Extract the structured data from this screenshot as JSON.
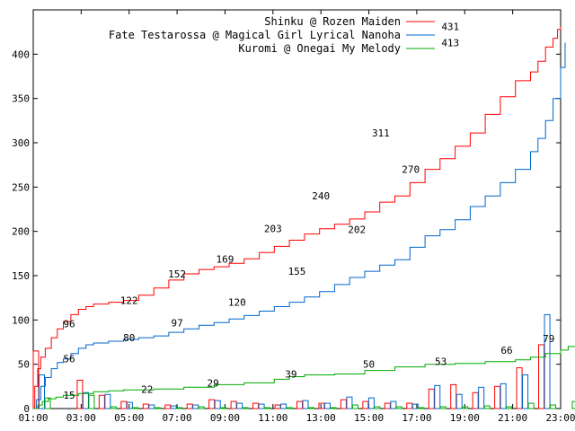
{
  "chart_data": {
    "type": "line",
    "title": "",
    "xlabel": "",
    "ylabel": "",
    "ylim": [
      0,
      450
    ],
    "x_ticks": [
      "01:00",
      "03:00",
      "05:00",
      "07:00",
      "09:00",
      "11:00",
      "13:00",
      "15:00",
      "17:00",
      "19:00",
      "21:00",
      "23:00"
    ],
    "y_ticks": [
      0,
      50,
      100,
      150,
      200,
      250,
      300,
      350,
      400
    ],
    "grid": false,
    "legend_position": "top-right",
    "series": [
      {
        "name": "Shinku @ Rozen Maiden",
        "color": "#ff0000",
        "cumulative": [
          [
            0,
            0
          ],
          [
            0.1,
            25
          ],
          [
            0.3,
            45
          ],
          [
            0.5,
            58
          ],
          [
            0.8,
            68
          ],
          [
            1.2,
            80
          ],
          [
            1.6,
            90
          ],
          [
            2.0,
            98
          ],
          [
            2.5,
            106
          ],
          [
            3.0,
            112
          ],
          [
            3.5,
            115
          ],
          [
            4.0,
            118
          ],
          [
            5.0,
            120
          ],
          [
            6.0,
            122
          ],
          [
            7.0,
            128
          ],
          [
            8.0,
            136
          ],
          [
            9.0,
            145
          ],
          [
            10.0,
            152
          ],
          [
            11.0,
            157
          ],
          [
            12.0,
            160
          ],
          [
            13.0,
            164
          ],
          [
            14.0,
            169
          ],
          [
            15.0,
            176
          ],
          [
            16.0,
            183
          ],
          [
            17.0,
            190
          ],
          [
            18.0,
            197
          ],
          [
            19.0,
            203
          ],
          [
            20.0,
            208
          ],
          [
            21.0,
            214
          ],
          [
            22.0,
            222
          ],
          [
            23.0,
            233
          ],
          [
            24.0,
            240
          ],
          [
            25.0,
            255
          ],
          [
            26.0,
            270
          ],
          [
            27.0,
            282
          ],
          [
            28.0,
            296
          ],
          [
            29.0,
            311
          ],
          [
            30.0,
            332
          ],
          [
            31.0,
            352
          ],
          [
            32.0,
            370
          ],
          [
            33.0,
            380
          ],
          [
            33.5,
            392
          ],
          [
            34.0,
            408
          ],
          [
            34.5,
            418
          ],
          [
            34.8,
            428
          ],
          [
            35.0,
            431
          ]
        ],
        "hourly": [
          65,
          0,
          32,
          15,
          8,
          5,
          4,
          5,
          10,
          8,
          6,
          4,
          8,
          6,
          10,
          8,
          6,
          6,
          22,
          27,
          18,
          25,
          46,
          72,
          0
        ],
        "labels": [
          {
            "x": 3,
            "y": 96,
            "t": "96"
          },
          {
            "x": 8,
            "y": 122,
            "t": "122"
          },
          {
            "x": 12,
            "y": 152,
            "t": "152"
          },
          {
            "x": 16,
            "y": 169,
            "t": "169"
          },
          {
            "x": 20,
            "y": 203,
            "t": "203"
          },
          {
            "x": 24,
            "y": 240,
            "t": "240"
          },
          {
            "x": 29,
            "y": 311,
            "t": "311"
          },
          {
            "x": 34.8,
            "y": 431,
            "t": "431"
          }
        ]
      },
      {
        "name": "Fate Testarossa @ Magical Girl Lyrical Nanoha",
        "color": "#0066cc",
        "cumulative": [
          [
            0,
            0
          ],
          [
            0.2,
            10
          ],
          [
            0.5,
            25
          ],
          [
            0.8,
            35
          ],
          [
            1.2,
            45
          ],
          [
            1.6,
            52
          ],
          [
            2.0,
            56
          ],
          [
            2.5,
            62
          ],
          [
            3.0,
            68
          ],
          [
            3.5,
            72
          ],
          [
            4.0,
            74
          ],
          [
            5.0,
            76
          ],
          [
            6.0,
            78
          ],
          [
            7.0,
            80
          ],
          [
            8.0,
            82
          ],
          [
            9.0,
            86
          ],
          [
            10.0,
            90
          ],
          [
            11.0,
            94
          ],
          [
            12.0,
            97
          ],
          [
            13.0,
            101
          ],
          [
            14.0,
            105
          ],
          [
            15.0,
            110
          ],
          [
            16.0,
            115
          ],
          [
            17.0,
            120
          ],
          [
            18.0,
            126
          ],
          [
            19.0,
            132
          ],
          [
            20.0,
            140
          ],
          [
            21.0,
            148
          ],
          [
            22.0,
            155
          ],
          [
            23.0,
            162
          ],
          [
            24.0,
            168
          ],
          [
            25.0,
            182
          ],
          [
            26.0,
            195
          ],
          [
            27.0,
            202
          ],
          [
            28.0,
            213
          ],
          [
            29.0,
            228
          ],
          [
            30.0,
            240
          ],
          [
            31.0,
            255
          ],
          [
            32.0,
            270
          ],
          [
            33.0,
            290
          ],
          [
            33.5,
            305
          ],
          [
            34.0,
            325
          ],
          [
            34.5,
            350
          ],
          [
            35.0,
            385
          ],
          [
            35.3,
            413
          ]
        ],
        "hourly": [
          38,
          0,
          18,
          16,
          7,
          4,
          3,
          4,
          9,
          6,
          5,
          5,
          9,
          6,
          13,
          12,
          8,
          5,
          26,
          16,
          24,
          28,
          38,
          106,
          0
        ],
        "labels": [
          {
            "x": 3,
            "y": 56,
            "t": "56"
          },
          {
            "x": 8,
            "y": 80,
            "t": "80"
          },
          {
            "x": 12,
            "y": 97,
            "t": "97"
          },
          {
            "x": 17,
            "y": 120,
            "t": "120"
          },
          {
            "x": 22,
            "y": 155,
            "t": "155"
          },
          {
            "x": 27,
            "y": 202,
            "t": "202"
          },
          {
            "x": 31.5,
            "y": 270,
            "t": "270"
          },
          {
            "x": 34.8,
            "y": 413,
            "t": "413"
          }
        ]
      },
      {
        "name": "Kuromi @ Onegai My Melody",
        "color": "#00aa00",
        "cumulative": [
          [
            0,
            0
          ],
          [
            0.3,
            4
          ],
          [
            0.6,
            8
          ],
          [
            1.0,
            11
          ],
          [
            1.5,
            13
          ],
          [
            2.0,
            15
          ],
          [
            3.0,
            17
          ],
          [
            4.0,
            19
          ],
          [
            5.0,
            20
          ],
          [
            6.0,
            21
          ],
          [
            8.0,
            22
          ],
          [
            10.0,
            24
          ],
          [
            12.0,
            27
          ],
          [
            14.0,
            29
          ],
          [
            16.0,
            33
          ],
          [
            17.0,
            36
          ],
          [
            18.0,
            38
          ],
          [
            20.0,
            39
          ],
          [
            22.0,
            43
          ],
          [
            24.0,
            47
          ],
          [
            26.0,
            50
          ],
          [
            28.0,
            51
          ],
          [
            30.0,
            53
          ],
          [
            32.0,
            55
          ],
          [
            33.0,
            58
          ],
          [
            34.0,
            62
          ],
          [
            35.0,
            66
          ],
          [
            35.5,
            70
          ],
          [
            36.0,
            79
          ]
        ],
        "hourly": [
          12,
          0,
          15,
          2,
          1,
          1,
          1,
          2,
          1,
          1,
          1,
          1,
          1,
          1,
          4,
          2,
          2,
          1,
          2,
          2,
          3,
          2,
          6,
          4,
          8
        ],
        "labels": [
          {
            "x": 3,
            "y": 15,
            "t": "15"
          },
          {
            "x": 9.5,
            "y": 22,
            "t": "22"
          },
          {
            "x": 15,
            "y": 29,
            "t": "29"
          },
          {
            "x": 21.5,
            "y": 39,
            "t": "39"
          },
          {
            "x": 28,
            "y": 50,
            "t": "50"
          },
          {
            "x": 34,
            "y": 53,
            "t": "53"
          },
          {
            "x": 39.5,
            "y": 66,
            "t": "66"
          },
          {
            "x": 43.5,
            "y": 79,
            "t": "79"
          }
        ]
      }
    ]
  }
}
